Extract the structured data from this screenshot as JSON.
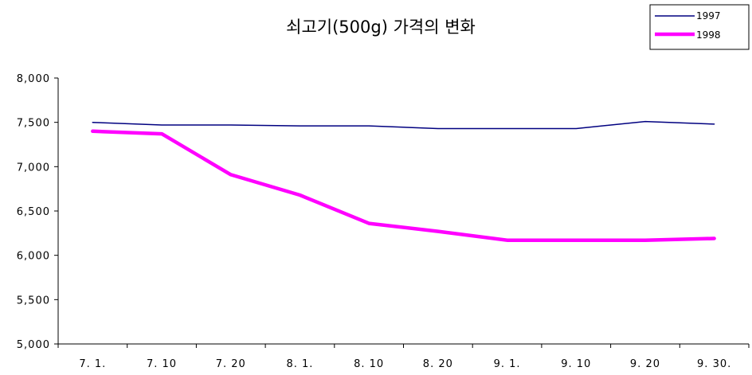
{
  "chart_data": {
    "type": "line",
    "title": "쇠고기(500g) 가격의 변화",
    "xlabel": "",
    "ylabel": "",
    "categories": [
      "7. 1.",
      "7. 10",
      "7. 20",
      "8. 1.",
      "8. 10",
      "8. 20",
      "9. 1.",
      "9. 10",
      "9. 20",
      "9. 30."
    ],
    "ylim": [
      5000,
      8000
    ],
    "yticks": [
      5000,
      5500,
      6000,
      6500,
      7000,
      7500,
      8000
    ],
    "ytick_labels": [
      "5,000",
      "5,500",
      "6,000",
      "6,500",
      "7,000",
      "7,500",
      "8,000"
    ],
    "grid": false,
    "legend_position": "top-right",
    "series": [
      {
        "name": "1997",
        "color": "#000080",
        "values": [
          7500,
          7470,
          7470,
          7460,
          7460,
          7430,
          7430,
          7430,
          7510,
          7480
        ]
      },
      {
        "name": "1998",
        "color": "#ff00ff",
        "values": [
          7400,
          7370,
          6910,
          6680,
          6360,
          6270,
          6170,
          6170,
          6170,
          6190
        ]
      }
    ]
  }
}
